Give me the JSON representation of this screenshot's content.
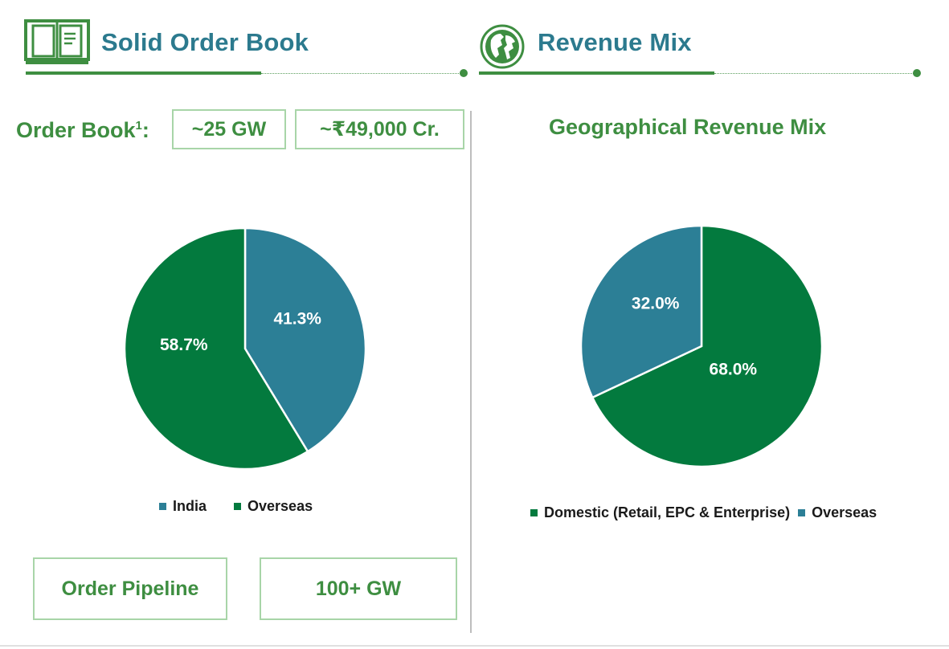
{
  "left_section": {
    "title": "Solid Order Book",
    "order_book_label": "Order Book",
    "order_book_superscript": "1",
    "order_book_colon": ":",
    "capacity_box": "~25 GW",
    "value_box": "~₹49,000 Cr.",
    "pipeline_label_box": "Order Pipeline",
    "pipeline_value_box": "100+ GW"
  },
  "right_section": {
    "title": "Revenue Mix",
    "chart_heading": "Geographical Revenue Mix"
  },
  "colors": {
    "teal": "#2c7f96",
    "green": "#037a3e",
    "title_teal": "#2c7a8e",
    "accent_green": "#3e8e41"
  },
  "chart_data": [
    {
      "type": "pie",
      "title": "Order Book",
      "categories": [
        "India",
        "Overseas"
      ],
      "values": [
        41.3,
        58.7
      ],
      "data_labels": [
        "41.3%",
        "58.7%"
      ],
      "colors": [
        "#2c7f96",
        "#037a3e"
      ],
      "legend": [
        "India",
        "Overseas"
      ],
      "legend_position": "bottom"
    },
    {
      "type": "pie",
      "title": "Geographical Revenue Mix",
      "categories": [
        "Domestic (Retail, EPC & Enterprise)",
        "Overseas"
      ],
      "values": [
        68.0,
        32.0
      ],
      "data_labels": [
        "68.0%",
        "32.0%"
      ],
      "colors": [
        "#037a3e",
        "#2c7f96"
      ],
      "legend": [
        "Domestic (Retail, EPC & Enterprise)",
        "Overseas"
      ],
      "legend_position": "bottom"
    }
  ]
}
